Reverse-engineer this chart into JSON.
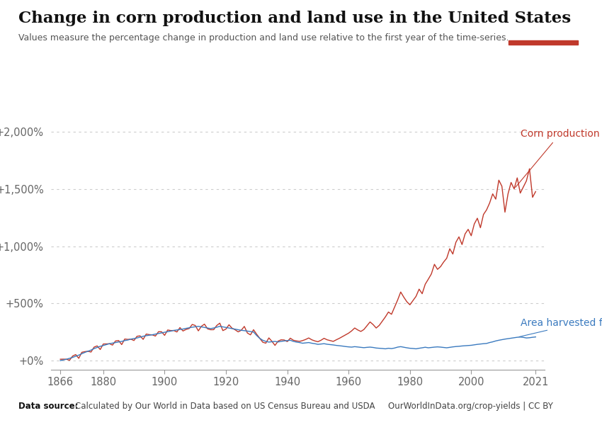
{
  "title": "Change in corn production and land use in the United States",
  "subtitle": "Values measure the percentage change in production and land use relative to the first year of the time-series.",
  "datasource_label": "Data source:",
  "datasource_text": "Calculated by Our World in Data based on US Census Bureau and USDA",
  "url_text": "OurWorldInData.org/crop-yields | CC BY",
  "corn_production_label": "Corn production",
  "area_label": "Area harvested for corn",
  "line_color_production": "#c0392b",
  "line_color_area": "#3a7abf",
  "background_color": "#ffffff",
  "owid_box_color": "#1a3a5c",
  "owid_box_red": "#c0392b",
  "ytick_labels": [
    "+0%",
    "+500%",
    "+1,000%",
    "+1,500%",
    "+2,000%"
  ],
  "ytick_values": [
    0,
    500,
    1000,
    1500,
    2000
  ],
  "xtick_labels": [
    "1866",
    "1880",
    "1900",
    "1920",
    "1940",
    "1960",
    "1980",
    "2000",
    "2021"
  ],
  "xtick_values": [
    1866,
    1880,
    1900,
    1920,
    1940,
    1960,
    1980,
    2000,
    2021
  ],
  "ylim": [
    -80,
    2150
  ],
  "xlim": [
    1863,
    2024
  ]
}
